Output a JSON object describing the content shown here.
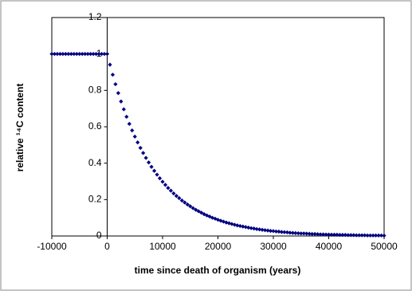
{
  "chart_data": {
    "type": "scatter",
    "x_label": "time since death of organism (years)",
    "y_label": "relative ¹⁴C content",
    "color": "#00007f",
    "xlim": [
      -10000,
      50000
    ],
    "xticks": [
      -10000,
      0,
      10000,
      20000,
      30000,
      40000,
      50000
    ],
    "ylim": [
      0,
      1.2
    ],
    "yticks": [
      0,
      0.2,
      0.4,
      0.6,
      0.8,
      1,
      1.2
    ],
    "x": [
      -10000,
      -9500,
      -9000,
      -8500,
      -8000,
      -7500,
      -7000,
      -6500,
      -6000,
      -5500,
      -5000,
      -4500,
      -4000,
      -3500,
      -3000,
      -2500,
      -2000,
      -1500,
      -1000,
      -500,
      0,
      500,
      1000,
      1500,
      2000,
      2500,
      3000,
      3500,
      4000,
      4500,
      5000,
      5500,
      6000,
      6500,
      7000,
      7500,
      8000,
      8500,
      9000,
      9500,
      10000,
      10500,
      11000,
      11500,
      12000,
      12500,
      13000,
      13500,
      14000,
      14500,
      15000,
      15500,
      16000,
      16500,
      17000,
      17500,
      18000,
      18500,
      19000,
      19500,
      20000,
      20500,
      21000,
      21500,
      22000,
      22500,
      23000,
      23500,
      24000,
      24500,
      25000,
      25500,
      26000,
      26500,
      27000,
      27500,
      28000,
      28500,
      29000,
      29500,
      30000,
      30500,
      31000,
      31500,
      32000,
      32500,
      33000,
      33500,
      34000,
      34500,
      35000,
      35500,
      36000,
      36500,
      37000,
      37500,
      38000,
      38500,
      39000,
      39500,
      40000,
      40500,
      41000,
      41500,
      42000,
      42500,
      43000,
      43500,
      44000,
      44500,
      45000,
      45500,
      46000,
      46500,
      47000,
      47500,
      48000,
      48500,
      49000,
      49500,
      50000
    ],
    "values": [
      1,
      1,
      1,
      1,
      1,
      1,
      1,
      1,
      1,
      1,
      1,
      1,
      1,
      1,
      1,
      1,
      1,
      1,
      1,
      1,
      1,
      0.941,
      0.886,
      0.834,
      0.785,
      0.739,
      0.696,
      0.655,
      0.616,
      0.58,
      0.546,
      0.514,
      0.484,
      0.456,
      0.429,
      0.404,
      0.38,
      0.358,
      0.337,
      0.317,
      0.298,
      0.281,
      0.264,
      0.249,
      0.234,
      0.22,
      0.208,
      0.195,
      0.184,
      0.173,
      0.163,
      0.153,
      0.144,
      0.136,
      0.128,
      0.12,
      0.113,
      0.107,
      0.1,
      0.095,
      0.089,
      0.084,
      0.079,
      0.074,
      0.07,
      0.066,
      0.062,
      0.058,
      0.055,
      0.052,
      0.049,
      0.046,
      0.043,
      0.041,
      0.038,
      0.036,
      0.034,
      0.032,
      0.03,
      0.028,
      0.027,
      0.025,
      0.024,
      0.022,
      0.021,
      0.02,
      0.018,
      0.017,
      0.016,
      0.015,
      0.014,
      0.014,
      0.013,
      0.012,
      0.011,
      0.011,
      0.01,
      0.009,
      0.009,
      0.008,
      0.008,
      0.007,
      0.007,
      0.007,
      0.006,
      0.006,
      0.006,
      0.005,
      0.005,
      0.005,
      0.004,
      0.004,
      0.004,
      0.004,
      0.003,
      0.003,
      0.003,
      0.003,
      0.003,
      0.003,
      0.002
    ]
  }
}
